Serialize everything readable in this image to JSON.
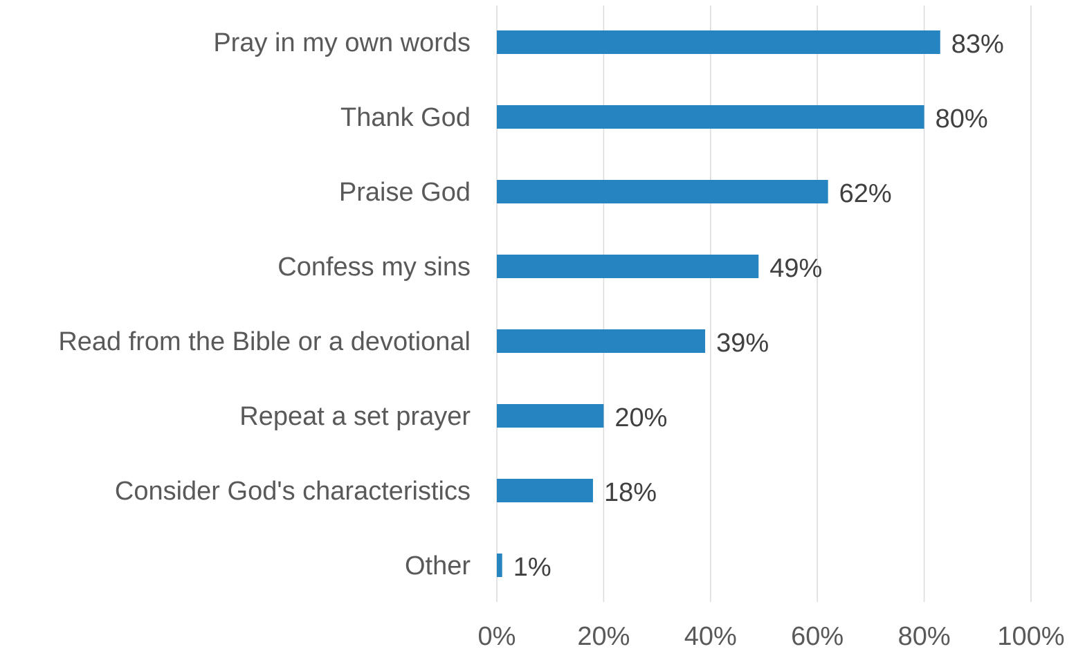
{
  "chart_data": {
    "type": "bar",
    "orientation": "horizontal",
    "categories": [
      "Pray in my own words",
      "Thank God",
      "Praise God",
      "Confess my sins",
      "Read from the Bible or a devotional",
      "Repeat a set prayer",
      "Consider God's characteristics",
      "Other"
    ],
    "values": [
      83,
      80,
      62,
      49,
      39,
      20,
      18,
      1
    ],
    "value_labels": [
      "83%",
      "80%",
      "62%",
      "49%",
      "39%",
      "20%",
      "18%",
      "1%"
    ],
    "title": "",
    "xlabel": "",
    "ylabel": "",
    "xlim": [
      0,
      100
    ],
    "x_ticks": [
      0,
      20,
      40,
      60,
      80,
      100
    ],
    "x_tick_labels": [
      "0%",
      "20%",
      "40%",
      "60%",
      "80%",
      "100%"
    ],
    "grid": "vertical",
    "legend": "none",
    "bar_color": "#2685C0",
    "gridline_color": "#D9D9D9"
  }
}
